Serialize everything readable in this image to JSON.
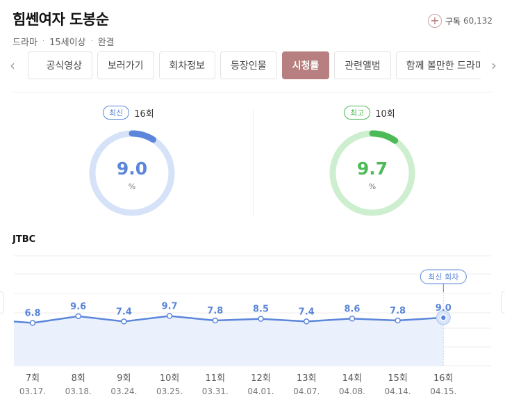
{
  "header": {
    "title": "힘쎈여자 도봉순",
    "genre": "드라마",
    "rating": "15세이상",
    "status": "완결"
  },
  "subscribe": {
    "label": "구독",
    "count": "60,132"
  },
  "tabs": [
    {
      "label": "공식영상",
      "active": false
    },
    {
      "label": "보러가기",
      "active": false
    },
    {
      "label": "회차정보",
      "active": false
    },
    {
      "label": "등장인물",
      "active": false
    },
    {
      "label": "시청률",
      "active": true
    },
    {
      "label": "관련앨범",
      "active": false
    },
    {
      "label": "함께 볼만한 드라마",
      "active": false
    }
  ],
  "latest": {
    "badge": "최신",
    "episode": "16회",
    "value": "9.0",
    "unit": "%",
    "color": "#5b86da",
    "track": "#d6e2f8"
  },
  "best": {
    "badge": "최고",
    "episode": "10회",
    "value": "9.7",
    "unit": "%",
    "color": "#4cba57",
    "track": "#cdeecf"
  },
  "broadcaster": "JTBC",
  "chart_data": {
    "type": "line",
    "categories": [
      "7회",
      "8회",
      "9회",
      "10회",
      "11회",
      "12회",
      "13회",
      "14회",
      "15회",
      "16회"
    ],
    "dates": [
      "03.17.",
      "03.18.",
      "03.24.",
      "03.25.",
      "03.31.",
      "04.01.",
      "04.07.",
      "04.08.",
      "04.14.",
      "04.15."
    ],
    "values": [
      6.8,
      9.6,
      7.4,
      9.7,
      7.8,
      8.5,
      7.4,
      8.6,
      7.8,
      9.0
    ],
    "labels": [
      "6.8",
      "9.6",
      "7.4",
      "9.7",
      "7.8",
      "8.5",
      "7.4",
      "8.6",
      "7.8",
      "9.0"
    ],
    "latest_tag": "최신 회차",
    "line_color": "#5b86da",
    "fill_color": "#eaf1fd"
  }
}
